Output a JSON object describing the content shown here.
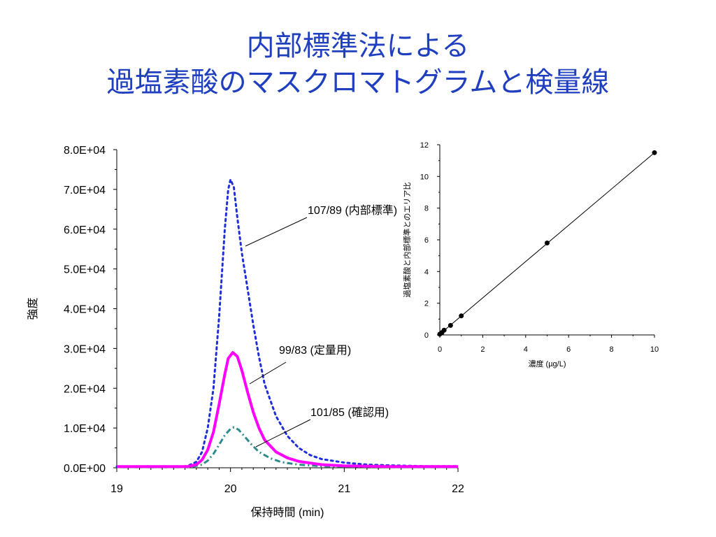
{
  "slide": {
    "title_line1": "内部標準法による",
    "title_line2": "過塩素酸のマスクロマトグラムと検量線",
    "title_color": "#1f3fbf"
  },
  "chart_data": [
    {
      "type": "line",
      "xlabel": "保持時間 (min)",
      "ylabel": "強度",
      "xlim": [
        19,
        22
      ],
      "ylim": [
        0,
        80000
      ],
      "x_ticks": [
        "19",
        "20",
        "21",
        "22"
      ],
      "y_ticks": [
        "0.0E+00",
        "1.0E+04",
        "2.0E+04",
        "3.0E+04",
        "4.0E+04",
        "5.0E+04",
        "6.0E+04",
        "7.0E+04",
        "8.0E+04"
      ],
      "grid": false,
      "series": [
        {
          "name": "107/89 (内部標準)",
          "color": "#1f2fd8",
          "style": "dotted",
          "points": [
            [
              19.0,
              300
            ],
            [
              19.5,
              300
            ],
            [
              19.62,
              400
            ],
            [
              19.7,
              1500
            ],
            [
              19.75,
              4000
            ],
            [
              19.8,
              10000
            ],
            [
              19.85,
              20000
            ],
            [
              19.9,
              38000
            ],
            [
              19.95,
              60000
            ],
            [
              19.98,
              70000
            ],
            [
              20.0,
              72500
            ],
            [
              20.03,
              70500
            ],
            [
              20.06,
              63000
            ],
            [
              20.1,
              54000
            ],
            [
              20.15,
              45000
            ],
            [
              20.2,
              36000
            ],
            [
              20.25,
              28000
            ],
            [
              20.3,
              21000
            ],
            [
              20.4,
              13000
            ],
            [
              20.5,
              8000
            ],
            [
              20.6,
              5000
            ],
            [
              20.7,
              3200
            ],
            [
              20.8,
              2200
            ],
            [
              21.0,
              1300
            ],
            [
              21.2,
              800
            ],
            [
              21.4,
              600
            ],
            [
              21.7,
              400
            ],
            [
              22.0,
              400
            ]
          ]
        },
        {
          "name": "99/83 (定量用)",
          "color": "#ff00ff",
          "style": "solid",
          "points": [
            [
              19.0,
              300
            ],
            [
              19.5,
              300
            ],
            [
              19.62,
              300
            ],
            [
              19.7,
              800
            ],
            [
              19.75,
              2000
            ],
            [
              19.8,
              4500
            ],
            [
              19.85,
              9000
            ],
            [
              19.9,
              16000
            ],
            [
              19.95,
              23500
            ],
            [
              19.98,
              27500
            ],
            [
              20.02,
              29000
            ],
            [
              20.06,
              28000
            ],
            [
              20.1,
              24500
            ],
            [
              20.15,
              19000
            ],
            [
              20.2,
              14000
            ],
            [
              20.25,
              10000
            ],
            [
              20.3,
              7000
            ],
            [
              20.4,
              4000
            ],
            [
              20.5,
              2500
            ],
            [
              20.6,
              1600
            ],
            [
              20.8,
              800
            ],
            [
              21.0,
              500
            ],
            [
              21.4,
              300
            ],
            [
              22.0,
              300
            ]
          ]
        },
        {
          "name": "101/85 (確認用)",
          "color": "#2e8b8b",
          "style": "dashdot",
          "points": [
            [
              19.0,
              200
            ],
            [
              19.5,
              200
            ],
            [
              19.65,
              200
            ],
            [
              19.75,
              800
            ],
            [
              19.8,
              1800
            ],
            [
              19.85,
              3500
            ],
            [
              19.9,
              5800
            ],
            [
              19.95,
              8200
            ],
            [
              20.0,
              9800
            ],
            [
              20.03,
              10200
            ],
            [
              20.07,
              9600
            ],
            [
              20.12,
              8000
            ],
            [
              20.18,
              6000
            ],
            [
              20.25,
              4000
            ],
            [
              20.35,
              2400
            ],
            [
              20.45,
              1400
            ],
            [
              20.6,
              800
            ],
            [
              20.8,
              400
            ],
            [
              21.0,
              300
            ],
            [
              22.0,
              200
            ]
          ]
        }
      ]
    },
    {
      "type": "scatter",
      "xlabel": "濃度 (µg/L)",
      "ylabel": "過塩素酸と内部標準とのエリア比",
      "xlim": [
        0,
        10
      ],
      "ylim": [
        0,
        12
      ],
      "x_ticks": [
        "0",
        "2",
        "4",
        "6",
        "8",
        "10"
      ],
      "y_ticks": [
        "0",
        "2",
        "4",
        "6",
        "8",
        "10",
        "12"
      ],
      "grid": false,
      "fit_line": {
        "x": [
          0,
          10
        ],
        "y": [
          0.05,
          11.5
        ]
      },
      "points": [
        [
          0,
          0.05
        ],
        [
          0.1,
          0.15
        ],
        [
          0.2,
          0.3
        ],
        [
          0.5,
          0.6
        ],
        [
          1.0,
          1.2
        ],
        [
          5.0,
          5.8
        ],
        [
          10.0,
          11.5
        ]
      ]
    }
  ]
}
